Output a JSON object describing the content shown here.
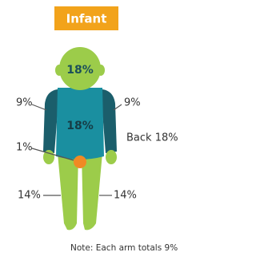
{
  "title": "Infant",
  "regions": {
    "head": "18%",
    "front": "18%",
    "left_arm": "9%",
    "right_arm": "9%",
    "back": "Back 18%",
    "genitals": "1%",
    "left_leg": "14%",
    "right_leg": "14%"
  },
  "note": "Note: Each arm totals 9%"
}
